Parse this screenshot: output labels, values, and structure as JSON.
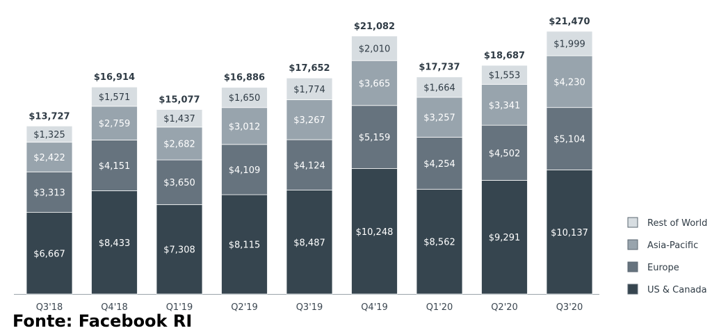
{
  "source_note": "Fonte: Facebook RI",
  "chart_data": {
    "type": "bar",
    "stacked": true,
    "categories": [
      "Q3'18",
      "Q4'18",
      "Q1'19",
      "Q2'19",
      "Q3'19",
      "Q4'19",
      "Q1'20",
      "Q2'20",
      "Q3'20"
    ],
    "series": [
      {
        "name": "US & Canada",
        "color": "#36454f",
        "text_color": "#ffffff",
        "values": [
          6667,
          8433,
          7308,
          8115,
          8487,
          10248,
          8562,
          9291,
          10137
        ],
        "labels": [
          "$6,667",
          "$8,433",
          "$7,308",
          "$8,115",
          "$8,487",
          "$10,248",
          "$8,562",
          "$9,291",
          "$10,137"
        ]
      },
      {
        "name": "Europe",
        "color": "#66737e",
        "text_color": "#ffffff",
        "values": [
          3313,
          4151,
          3650,
          4109,
          4124,
          5159,
          4254,
          4502,
          5104
        ],
        "labels": [
          "$3,313",
          "$4,151",
          "$3,650",
          "$4,109",
          "$4,124",
          "$5,159",
          "$4,254",
          "$4,502",
          "$5,104"
        ]
      },
      {
        "name": "Asia-Pacific",
        "color": "#98a4ad",
        "text_color": "#ffffff",
        "values": [
          2422,
          2759,
          2682,
          3012,
          3267,
          3665,
          3257,
          3341,
          4230
        ],
        "labels": [
          "$2,422",
          "$2,759",
          "$2,682",
          "$3,012",
          "$3,267",
          "$3,665",
          "$3,257",
          "$3,341",
          "$4,230"
        ]
      },
      {
        "name": "Rest of World",
        "color": "#d7dde1",
        "text_color": "#2f3b45",
        "values": [
          1325,
          1571,
          1437,
          1650,
          1774,
          2010,
          1664,
          1553,
          1999
        ],
        "labels": [
          "$1,325",
          "$1,571",
          "$1,437",
          "$1,650",
          "$1,774",
          "$2,010",
          "$1,664",
          "$1,553",
          "$1,999"
        ]
      }
    ],
    "totals": [
      13727,
      16914,
      15077,
      16886,
      17652,
      21082,
      17737,
      18687,
      21470
    ],
    "total_labels": [
      "$13,727",
      "$16,914",
      "$15,077",
      "$16,886",
      "$17,652",
      "$21,082",
      "$17,737",
      "$18,687",
      "$21,470"
    ],
    "legend_order": [
      "Rest of World",
      "Asia-Pacific",
      "Europe",
      "US & Canada"
    ],
    "legend_position": "right",
    "title": "",
    "xlabel": "",
    "ylabel": "",
    "ylim": [
      0,
      21470
    ],
    "grid": false
  }
}
